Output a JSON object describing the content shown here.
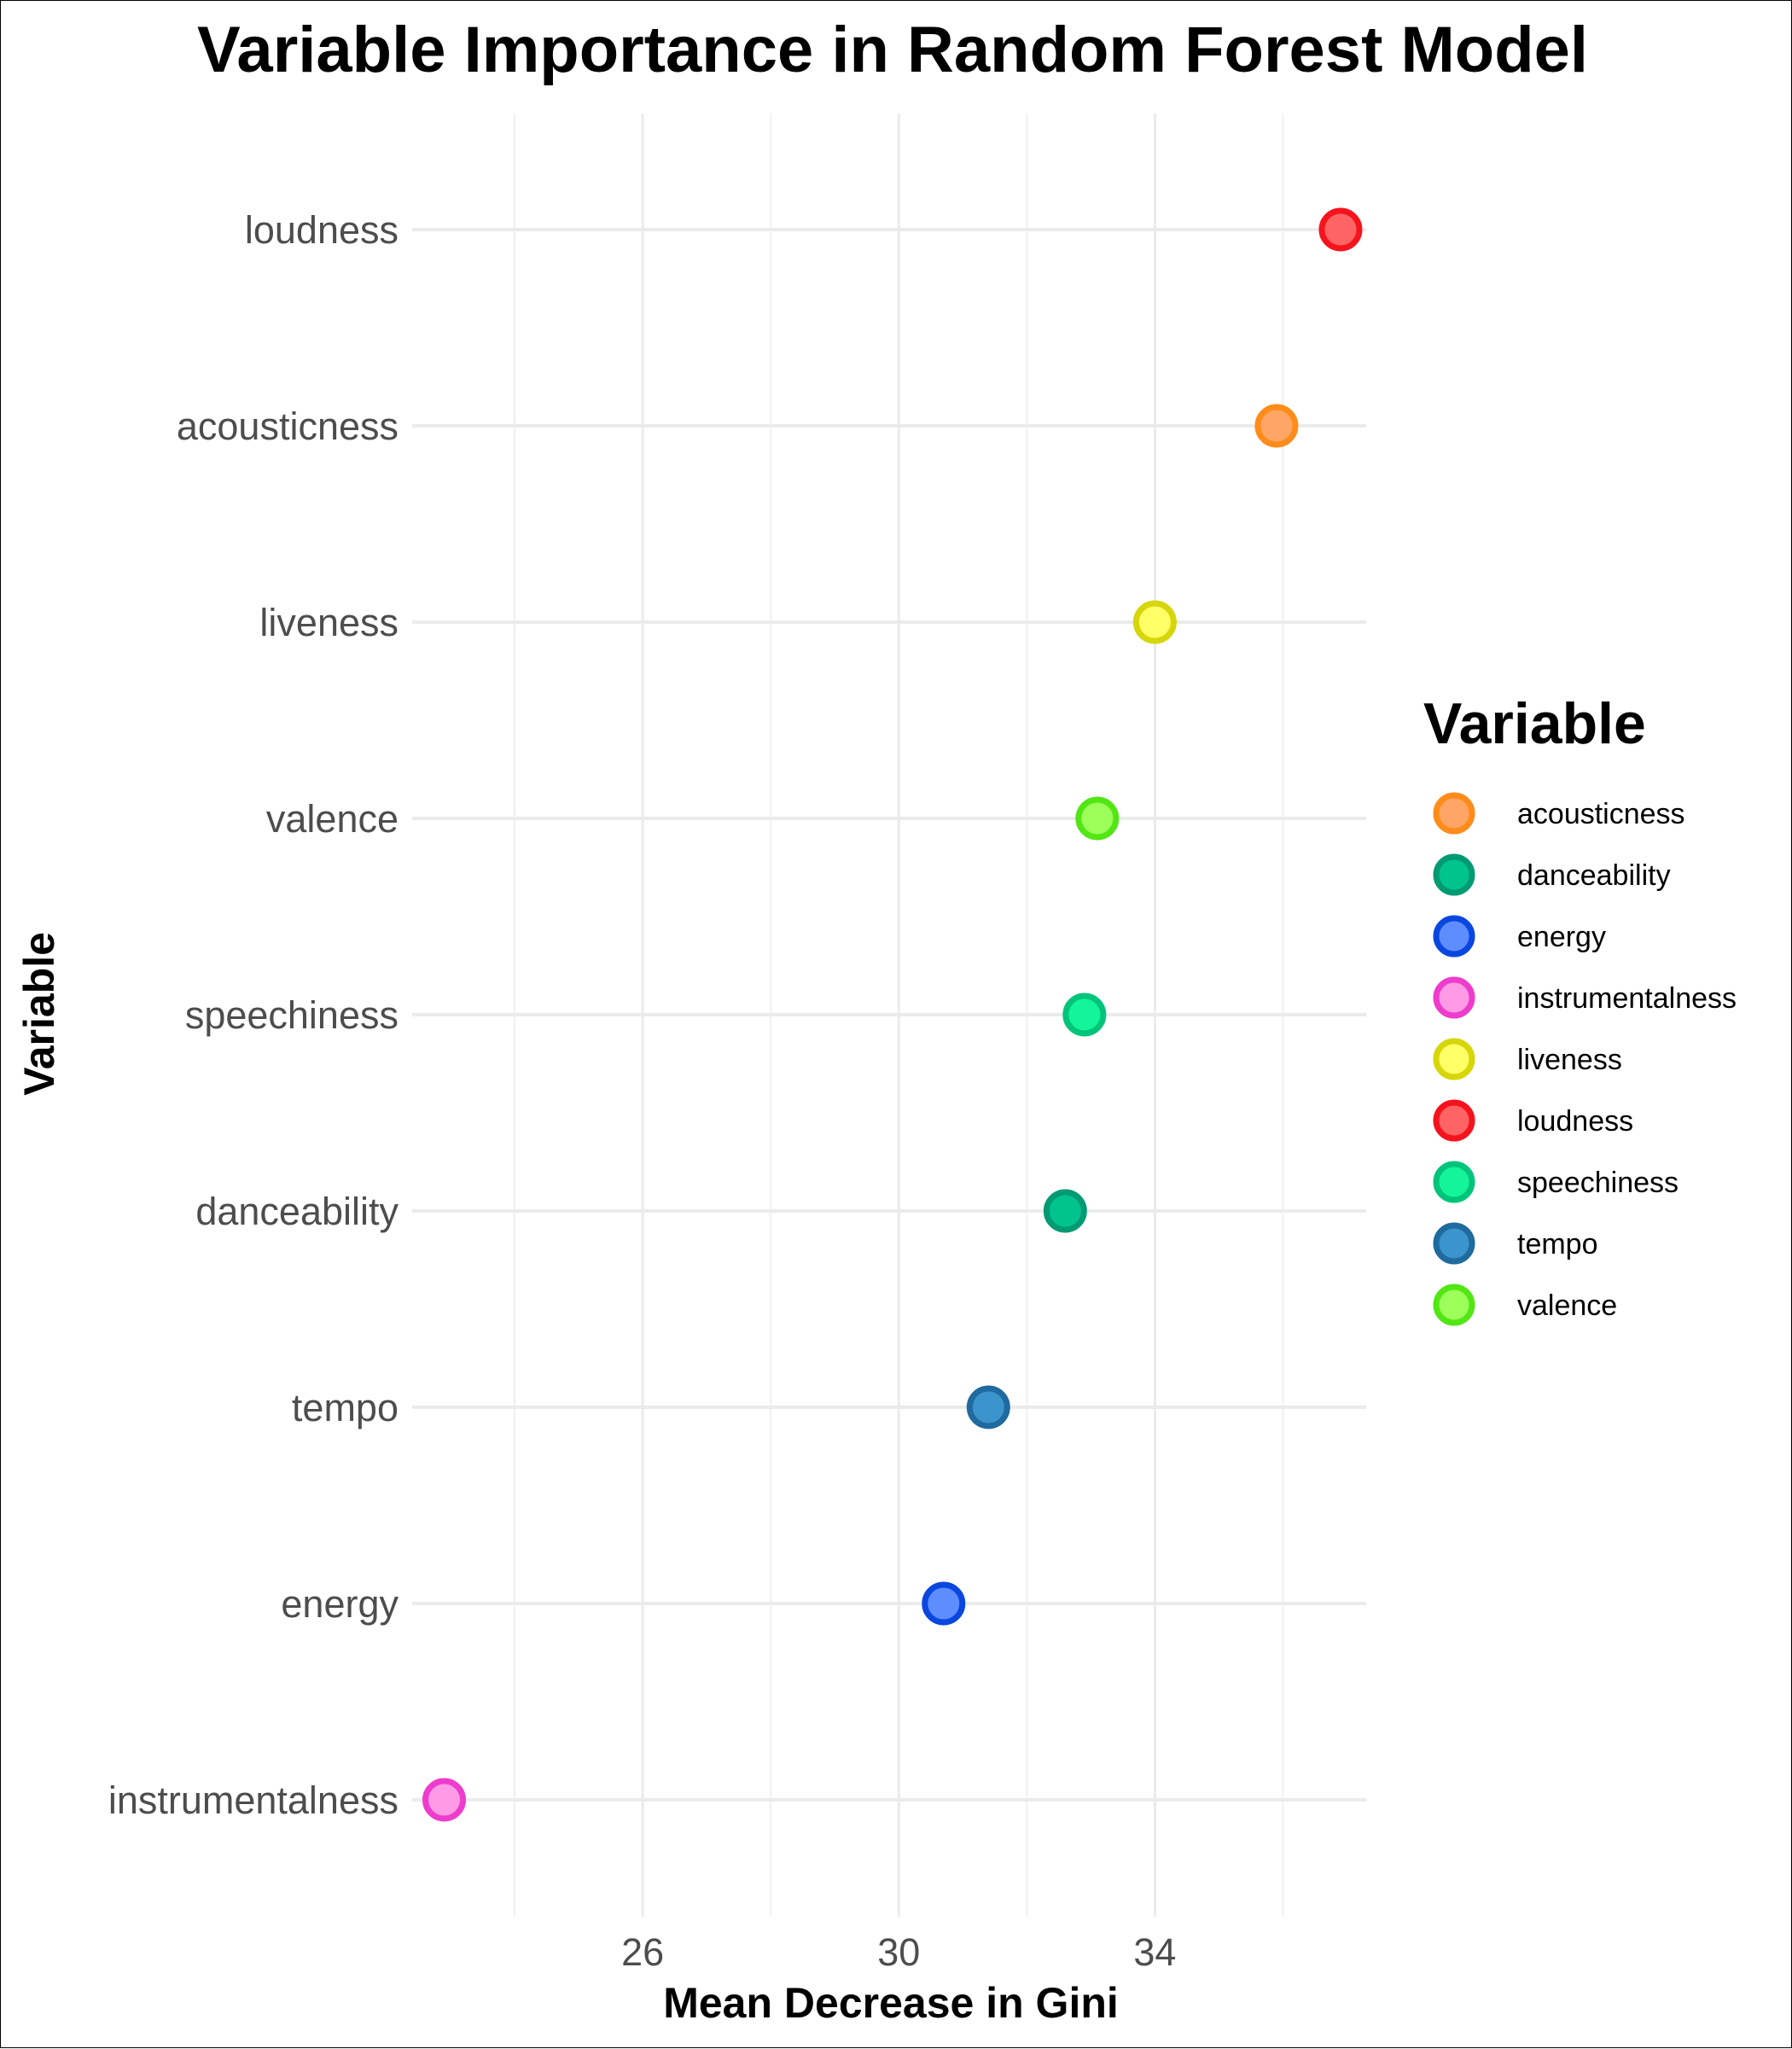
{
  "chart_data": {
    "type": "scatter",
    "title": "Variable Importance in Random Forest Model",
    "xlabel": "Mean Decrease in Gini",
    "ylabel": "Variable",
    "xlim": [
      22.4,
      37.3
    ],
    "x_ticks": [
      26,
      30,
      34
    ],
    "x_minor_ticks": [
      24,
      28,
      32,
      36
    ],
    "grid": true,
    "legend": {
      "title": "Variable",
      "position": "right",
      "entries": [
        "acousticness",
        "danceability",
        "energy",
        "instrumentalness",
        "liveness",
        "loudness",
        "speechiness",
        "tempo",
        "valence"
      ]
    },
    "categories": [
      "loudness",
      "acousticness",
      "liveness",
      "valence",
      "speechiness",
      "danceability",
      "tempo",
      "energy",
      "instrumentalness"
    ],
    "values": [
      36.9,
      35.9,
      34.0,
      33.1,
      32.9,
      32.6,
      31.4,
      30.7,
      22.9
    ],
    "colors": {
      "acousticness": {
        "fill": "#ffa566",
        "stroke": "#ff8c1a"
      },
      "danceability": {
        "fill": "#00c48c",
        "stroke": "#009a73"
      },
      "energy": {
        "fill": "#5e8dff",
        "stroke": "#0a47e0"
      },
      "instrumentalness": {
        "fill": "#ff9ae6",
        "stroke": "#ee3ccc"
      },
      "liveness": {
        "fill": "#ffff66",
        "stroke": "#d6d60a"
      },
      "loudness": {
        "fill": "#ff6464",
        "stroke": "#f5141e"
      },
      "speechiness": {
        "fill": "#14f59a",
        "stroke": "#00c47a"
      },
      "tempo": {
        "fill": "#3a95cc",
        "stroke": "#1f6a9e"
      },
      "valence": {
        "fill": "#9cff5a",
        "stroke": "#52e614"
      }
    }
  }
}
